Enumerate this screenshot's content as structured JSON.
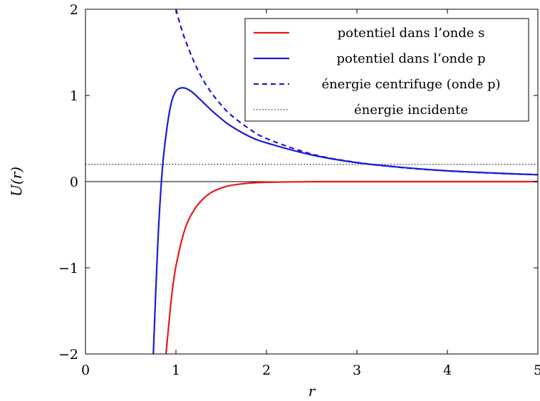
{
  "chart_data": {
    "type": "line",
    "xlabel": "r",
    "ylabel": "U(r)",
    "xlim": [
      0,
      5
    ],
    "ylim": [
      -2,
      2
    ],
    "x_ticks": [
      0,
      1,
      2,
      3,
      4,
      5
    ],
    "y_ticks": [
      -2,
      -1,
      0,
      1,
      2
    ],
    "x_tick_labels": [
      "0",
      "1",
      "2",
      "3",
      "4",
      "5"
    ],
    "y_tick_labels": [
      "−2",
      "−1",
      "0",
      "1",
      "2"
    ],
    "grid": false,
    "legend_position": "top-right",
    "series": [
      {
        "name": "potentiel dans l’onde s",
        "color": "#e8191c",
        "style": "solid",
        "x": [
          0.89,
          0.95,
          1.0,
          1.1,
          1.2,
          1.3,
          1.4,
          1.5,
          1.6,
          1.8,
          2.0,
          2.5,
          3.0,
          4.0,
          5.0
        ],
        "y": [
          -2.0,
          -1.35,
          -0.98,
          -0.55,
          -0.33,
          -0.2,
          -0.12,
          -0.075,
          -0.045,
          -0.018,
          -0.007,
          -0.001,
          0.0,
          0.0,
          0.0
        ]
      },
      {
        "name": "potentiel dans l’onde p",
        "color": "#1b1bd6",
        "style": "solid",
        "x": [
          0.75,
          0.8,
          0.85,
          0.9,
          0.95,
          1.0,
          1.05,
          1.1,
          1.15,
          1.2,
          1.3,
          1.4,
          1.5,
          1.6,
          1.8,
          2.0,
          2.5,
          3.0,
          3.5,
          4.0,
          4.5,
          5.0
        ],
        "y": [
          -2.0,
          -0.7,
          0.15,
          0.62,
          0.92,
          1.05,
          1.085,
          1.085,
          1.06,
          1.02,
          0.92,
          0.82,
          0.73,
          0.65,
          0.53,
          0.45,
          0.31,
          0.22,
          0.165,
          0.125,
          0.1,
          0.08
        ]
      },
      {
        "name": "énergie centrifuge (onde p)",
        "color": "#1b1bd6",
        "style": "dashed",
        "x": [
          1.0,
          1.05,
          1.1,
          1.2,
          1.3,
          1.4,
          1.5,
          1.6,
          1.8,
          2.0,
          2.5,
          3.0,
          3.5,
          4.0,
          4.5,
          5.0
        ],
        "y": [
          2.0,
          1.81,
          1.65,
          1.39,
          1.18,
          1.02,
          0.89,
          0.78,
          0.62,
          0.5,
          0.32,
          0.222,
          0.163,
          0.125,
          0.099,
          0.08
        ]
      },
      {
        "name": "énergie incidente",
        "color": "#000000",
        "style": "dotted",
        "x": [
          0,
          5
        ],
        "y": [
          0.2,
          0.2
        ]
      }
    ],
    "zero_line": {
      "y": 0,
      "color": "#000000"
    }
  }
}
